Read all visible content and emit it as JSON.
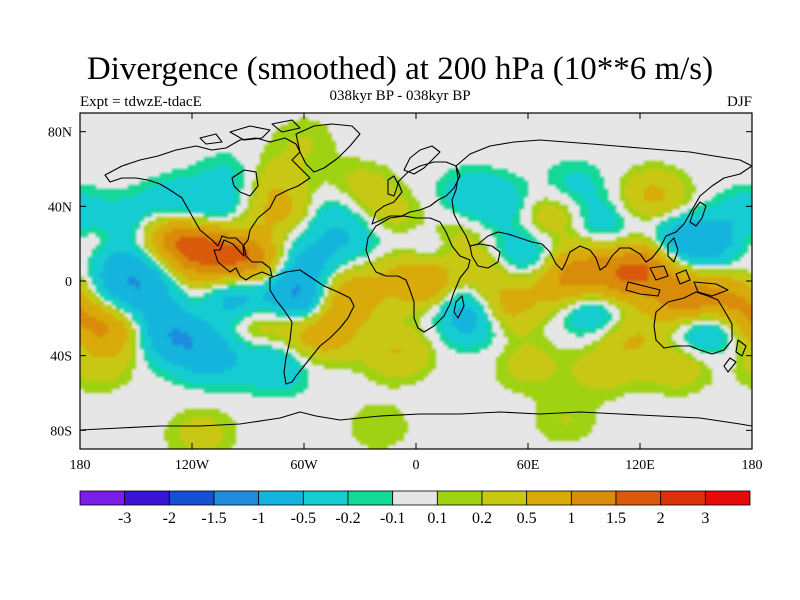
{
  "figure": {
    "title": "Divergence (smoothed) at 200 hPa (10**6 m/s)",
    "subtitle": "038kyr BP - 038kyr BP",
    "experiment": "Expt = tdwzE-tdacE",
    "season": "DJF"
  },
  "map": {
    "projection": "cylindrical-equidistant",
    "lon_range": [
      180,
      540
    ],
    "lat_range": [
      -90,
      90
    ],
    "missing_color": "#e6e6e6",
    "lat_ticks": [
      {
        "value": 80,
        "label": "80N"
      },
      {
        "value": 40,
        "label": "40N"
      },
      {
        "value": 0,
        "label": "0"
      },
      {
        "value": -40,
        "label": "40S"
      },
      {
        "value": -80,
        "label": "80S"
      }
    ],
    "lon_ticks": [
      {
        "value": 180,
        "label": "180"
      },
      {
        "value": 240,
        "label": "120W"
      },
      {
        "value": 300,
        "label": "60W"
      },
      {
        "value": 360,
        "label": "0"
      },
      {
        "value": 420,
        "label": "60E"
      },
      {
        "value": 480,
        "label": "120E"
      },
      {
        "value": 540,
        "label": "180"
      }
    ]
  },
  "colorbar": {
    "colors": [
      "#7b1fe6",
      "#3a14d4",
      "#1450d2",
      "#1e8cdc",
      "#14b4dc",
      "#14ccd2",
      "#14d898",
      "#e6e6e6",
      "#a0d214",
      "#c8c814",
      "#d8aa0a",
      "#d88c0a",
      "#d85a0a",
      "#dc320a",
      "#e60a0a"
    ],
    "labels": [
      "-3",
      "-2",
      "-1.5",
      "-1",
      "-0.5",
      "-0.2",
      "-0.1",
      "0.1",
      "0.2",
      "0.5",
      "1",
      "1.5",
      "2",
      "3"
    ]
  },
  "chart_data": {
    "type": "heatmap",
    "field": "200 hPa divergence difference",
    "units": "10**6 m/s",
    "levels": [
      -3,
      -2,
      -1.5,
      -1,
      -0.5,
      -0.2,
      -0.1,
      0.1,
      0.2,
      0.5,
      1,
      1.5,
      2,
      3
    ],
    "x_range_lon": [
      180,
      540
    ],
    "y_range_lat": [
      -90,
      90
    ],
    "features": [
      {
        "lon": 185,
        "lat": 20,
        "value": 0.4
      },
      {
        "lon": 200,
        "lat": 10,
        "value": -0.6
      },
      {
        "lon": 195,
        "lat": -10,
        "value": -0.7
      },
      {
        "lon": 185,
        "lat": -20,
        "value": 0.7
      },
      {
        "lon": 200,
        "lat": -25,
        "value": 0.9
      },
      {
        "lon": 215,
        "lat": -20,
        "value": -0.5
      },
      {
        "lon": 230,
        "lat": -30,
        "value": -0.8
      },
      {
        "lon": 210,
        "lat": 30,
        "value": -0.5
      },
      {
        "lon": 225,
        "lat": 25,
        "value": 0.9
      },
      {
        "lon": 220,
        "lat": 0,
        "value": -0.8
      },
      {
        "lon": 238,
        "lat": 5,
        "value": 0.6
      },
      {
        "lon": 242,
        "lat": 20,
        "value": 1.1
      },
      {
        "lon": 232,
        "lat": 40,
        "value": -0.5
      },
      {
        "lon": 252,
        "lat": 35,
        "value": -0.4
      },
      {
        "lon": 260,
        "lat": 15,
        "value": 0.9
      },
      {
        "lon": 275,
        "lat": 10,
        "value": 1.0
      },
      {
        "lon": 262,
        "lat": 55,
        "value": -0.3
      },
      {
        "lon": 282,
        "lat": 55,
        "value": 0.3
      },
      {
        "lon": 288,
        "lat": 38,
        "value": 0.6
      },
      {
        "lon": 265,
        "lat": -10,
        "value": -0.9
      },
      {
        "lon": 250,
        "lat": -40,
        "value": -0.7
      },
      {
        "lon": 275,
        "lat": -20,
        "value": 0.6
      },
      {
        "lon": 285,
        "lat": -45,
        "value": -0.5
      },
      {
        "lon": 292,
        "lat": -5,
        "value": -0.7
      },
      {
        "lon": 305,
        "lat": -12,
        "value": -0.9
      },
      {
        "lon": 300,
        "lat": 12,
        "value": -0.6
      },
      {
        "lon": 308,
        "lat": -28,
        "value": 0.9
      },
      {
        "lon": 320,
        "lat": -10,
        "value": 1.2
      },
      {
        "lon": 315,
        "lat": 35,
        "value": -0.4
      },
      {
        "lon": 328,
        "lat": 20,
        "value": -0.4
      },
      {
        "lon": 330,
        "lat": 50,
        "value": 0.3
      },
      {
        "lon": 345,
        "lat": 35,
        "value": 0.3
      },
      {
        "lon": 340,
        "lat": 5,
        "value": 0.3
      },
      {
        "lon": 350,
        "lat": -38,
        "value": 0.5
      },
      {
        "lon": 367,
        "lat": 0,
        "value": 1.3
      },
      {
        "lon": 372,
        "lat": 15,
        "value": -0.6
      },
      {
        "lon": 380,
        "lat": 22,
        "value": 0.5
      },
      {
        "lon": 382,
        "lat": -5,
        "value": -0.6
      },
      {
        "lon": 392,
        "lat": -20,
        "value": -0.9
      },
      {
        "lon": 395,
        "lat": 5,
        "value": 0.6
      },
      {
        "lon": 405,
        "lat": -15,
        "value": 0.9
      },
      {
        "lon": 390,
        "lat": 45,
        "value": -0.4
      },
      {
        "lon": 410,
        "lat": 40,
        "value": -0.3
      },
      {
        "lon": 410,
        "lat": 15,
        "value": -0.3
      },
      {
        "lon": 425,
        "lat": 12,
        "value": -0.4
      },
      {
        "lon": 438,
        "lat": -2,
        "value": 0.8
      },
      {
        "lon": 448,
        "lat": 8,
        "value": 0.8
      },
      {
        "lon": 432,
        "lat": 35,
        "value": 0.5
      },
      {
        "lon": 445,
        "lat": 50,
        "value": -0.3
      },
      {
        "lon": 460,
        "lat": 30,
        "value": -0.4
      },
      {
        "lon": 455,
        "lat": -15,
        "value": -0.7
      },
      {
        "lon": 470,
        "lat": 0,
        "value": 1.0
      },
      {
        "lon": 485,
        "lat": 10,
        "value": 1.2
      },
      {
        "lon": 475,
        "lat": -30,
        "value": 0.5
      },
      {
        "lon": 487,
        "lat": 45,
        "value": 0.6
      },
      {
        "lon": 500,
        "lat": 20,
        "value": -0.9
      },
      {
        "lon": 505,
        "lat": -10,
        "value": 1.4
      },
      {
        "lon": 520,
        "lat": 20,
        "value": -0.6
      },
      {
        "lon": 515,
        "lat": -25,
        "value": -0.8
      },
      {
        "lon": 532,
        "lat": -10,
        "value": 0.9
      },
      {
        "lon": 538,
        "lat": 35,
        "value": -0.4
      },
      {
        "lon": 420,
        "lat": -45,
        "value": 0.3
      },
      {
        "lon": 460,
        "lat": -48,
        "value": 0.3
      },
      {
        "lon": 500,
        "lat": -45,
        "value": 0.4
      },
      {
        "lon": 190,
        "lat": -45,
        "value": 0.3
      },
      {
        "lon": 245,
        "lat": -82,
        "value": 0.3
      },
      {
        "lon": 340,
        "lat": -78,
        "value": 0.2
      },
      {
        "lon": 440,
        "lat": -75,
        "value": 0.2
      },
      {
        "lon": 300,
        "lat": 75,
        "value": 0.2
      }
    ]
  }
}
